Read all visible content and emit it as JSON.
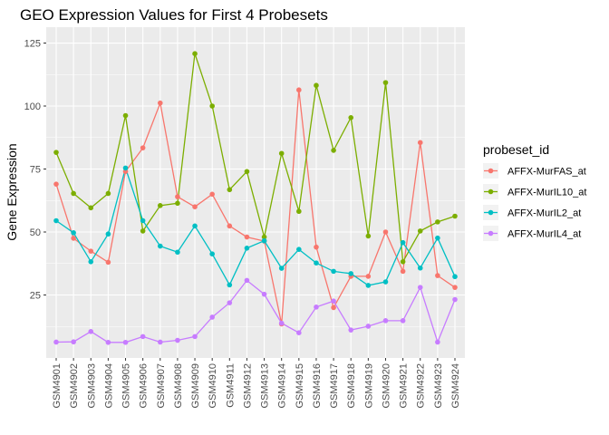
{
  "chart_data": {
    "type": "line",
    "title": "GEO Expression Values for First 4 Probesets",
    "xlabel": "",
    "ylabel": "Gene Expression",
    "ylim": [
      0,
      125
    ],
    "yticks": [
      25,
      50,
      75,
      100,
      125
    ],
    "grid": true,
    "legend_title": "probeset_id",
    "legend_position": "right",
    "categories": [
      "GSM4901",
      "GSM4902",
      "GSM4903",
      "GSM4904",
      "GSM4905",
      "GSM4906",
      "GSM4907",
      "GSM4908",
      "GSM4909",
      "GSM4910",
      "GSM4911",
      "GSM4912",
      "GSM4913",
      "GSM4914",
      "GSM4915",
      "GSM4916",
      "GSM4917",
      "GSM4918",
      "GSM4919",
      "GSM4920",
      "GSM4921",
      "GSM4922",
      "GSM4923",
      "GSM4924"
    ],
    "series": [
      {
        "name": "AFFX-MurFAS_at",
        "color": "#F8766D",
        "values": [
          69,
          47.5,
          42.4,
          38,
          74,
          83.4,
          101.2,
          64,
          60,
          65,
          52.4,
          48,
          46.4,
          13.5,
          106.4,
          44,
          20,
          32.4,
          32.4,
          50,
          34.4,
          85.5,
          32.7,
          28
        ]
      },
      {
        "name": "AFFX-MurIL10_at",
        "color": "#7CAE00",
        "values": [
          81.6,
          65.3,
          59.6,
          65.3,
          96.2,
          50.4,
          60.5,
          61.4,
          120.8,
          100,
          66.8,
          74,
          48,
          81.2,
          58.2,
          108.2,
          82.4,
          95.4,
          48.4,
          109.3,
          38.2,
          50.4,
          54,
          56.3
        ]
      },
      {
        "name": "AFFX-MurIL2_at",
        "color": "#00BFC4",
        "values": [
          54.5,
          49.7,
          38.2,
          49.2,
          75.4,
          54.5,
          44.4,
          42,
          52.4,
          41.3,
          29,
          43.6,
          46.5,
          35.6,
          43.1,
          37.7,
          34.4,
          33.5,
          28.8,
          30.2,
          45.8,
          35.7,
          47.6,
          32.3
        ]
      },
      {
        "name": "AFFX-MurIL4_at",
        "color": "#C77CFF",
        "values": [
          6.3,
          6.4,
          10.5,
          6.2,
          6.2,
          8.5,
          6.3,
          7,
          8.5,
          16.2,
          21.9,
          30.8,
          25.3,
          13.8,
          10,
          20.2,
          22.6,
          11.1,
          12.6,
          14.8,
          14.8,
          28,
          6.3,
          23.2
        ]
      }
    ]
  }
}
